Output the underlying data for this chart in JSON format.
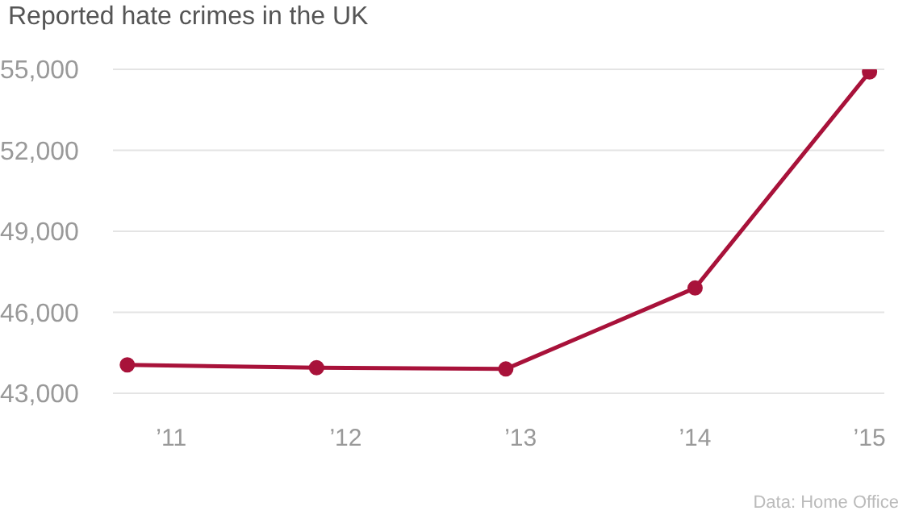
{
  "chart_data": {
    "type": "line",
    "title": "Reported hate crimes in the UK",
    "x": [
      "2010-10",
      "2011-11",
      "2012-12",
      "2014-01",
      "2015-01"
    ],
    "series": [
      {
        "color": "#a8123a",
        "values": [
          44050,
          43950,
          43900,
          46900,
          54900
        ]
      }
    ],
    "xlim": [
      "2010-09",
      "2015-02"
    ],
    "xticks": [
      {
        "value": "2011",
        "label": "’11"
      },
      {
        "value": "2012",
        "label": "’12"
      },
      {
        "value": "2013",
        "label": "’13"
      },
      {
        "value": "2014",
        "label": "’14"
      },
      {
        "value": "2015",
        "label": "’15"
      }
    ],
    "ylim": [
      43000,
      55000
    ],
    "yticks": [
      {
        "value": 43000,
        "label": "43,000"
      },
      {
        "value": 46000,
        "label": "46,000"
      },
      {
        "value": 49000,
        "label": "49,000"
      },
      {
        "value": 52000,
        "label": "52,000"
      },
      {
        "value": 55000,
        "label": "55,000"
      }
    ],
    "grid": "y",
    "marker": "circle",
    "line_style": "solid",
    "annotations": [
      "Data: Home Office"
    ]
  }
}
